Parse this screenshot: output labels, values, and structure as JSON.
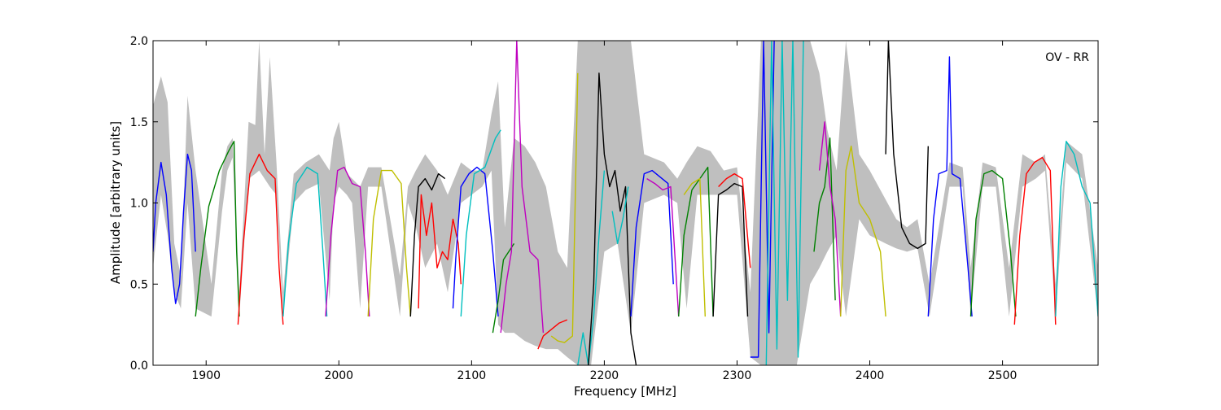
{
  "chart_data": {
    "type": "line",
    "annotation": "OV - RR",
    "xlabel": "Frequency [MHz]",
    "ylabel": "Amplitude [arbitrary units]",
    "xlim": [
      1860,
      2572
    ],
    "ylim": [
      0.0,
      2.0
    ],
    "x_ticks": [
      1900,
      2000,
      2100,
      2200,
      2300,
      2400,
      2500
    ],
    "y_ticks": [
      0.0,
      0.5,
      1.0,
      1.5,
      2.0
    ],
    "x_tick_labels": [
      "1900",
      "2000",
      "2100",
      "2200",
      "2300",
      "2400",
      "2500"
    ],
    "y_tick_labels": [
      "0.0",
      "0.5",
      "1.0",
      "1.5",
      "2.0"
    ],
    "grid": false,
    "legend": "none",
    "background_envelope": {
      "color": "#bfbfbf",
      "x": [
        1860,
        1866,
        1871,
        1876,
        1881,
        1886,
        1892,
        1904,
        1912,
        1916,
        1920,
        1925,
        1932,
        1937,
        1940,
        1944,
        1948,
        1953,
        1958,
        1966,
        1975,
        1985,
        1993,
        1996,
        2000,
        2006,
        2010,
        2016,
        2022,
        2032,
        2046,
        2052,
        2058,
        2065,
        2074,
        2082,
        2092,
        2100,
        2108,
        2115,
        2120,
        2125,
        2132,
        2140,
        2148,
        2156,
        2165,
        2172,
        2180,
        2190,
        2200,
        2210,
        2220,
        2230,
        2245,
        2255,
        2262,
        2270,
        2280,
        2290,
        2300,
        2310,
        2318,
        2330,
        2345,
        2355,
        2362,
        2368,
        2375,
        2382,
        2392,
        2400,
        2412,
        2420,
        2428,
        2436,
        2445,
        2460,
        2470,
        2476,
        2485,
        2495,
        2505,
        2515,
        2525,
        2532,
        2540,
        2548,
        2560,
        2572
      ],
      "upper": [
        1.6,
        1.78,
        1.62,
        0.75,
        0.55,
        1.66,
        1.2,
        0.5,
        1.2,
        1.35,
        1.4,
        0.45,
        1.5,
        1.48,
        2.0,
        1.3,
        1.9,
        1.25,
        0.45,
        1.18,
        1.25,
        1.3,
        1.2,
        1.4,
        1.5,
        1.18,
        1.15,
        1.1,
        1.22,
        1.22,
        0.55,
        1.1,
        1.2,
        1.3,
        1.2,
        1.05,
        1.25,
        1.2,
        1.2,
        1.55,
        1.75,
        0.85,
        1.4,
        1.35,
        1.25,
        1.1,
        0.7,
        0.6,
        2.0,
        2.0,
        2.0,
        2.0,
        2.0,
        1.3,
        1.25,
        1.15,
        1.25,
        1.35,
        1.32,
        1.2,
        1.22,
        0.45,
        2.0,
        2.0,
        2.0,
        2.0,
        1.8,
        1.45,
        1.2,
        2.0,
        1.3,
        1.2,
        1.02,
        0.9,
        0.85,
        0.9,
        0.5,
        1.25,
        1.22,
        0.6,
        1.25,
        1.22,
        0.6,
        1.3,
        1.25,
        1.3,
        0.5,
        1.38,
        1.3,
        0.6
      ],
      "lower": [
        0.6,
        1.05,
        0.8,
        0.45,
        0.35,
        1.0,
        0.35,
        0.3,
        0.95,
        1.2,
        1.28,
        0.3,
        1.15,
        1.18,
        1.2,
        1.15,
        1.1,
        1.05,
        0.3,
        1.0,
        1.08,
        1.12,
        0.4,
        1.0,
        1.1,
        1.05,
        1.0,
        0.35,
        1.1,
        1.1,
        0.3,
        1.0,
        0.85,
        0.6,
        0.75,
        0.45,
        1.0,
        1.05,
        1.1,
        1.2,
        0.25,
        0.2,
        0.2,
        0.15,
        0.12,
        0.1,
        0.1,
        0.05,
        0.0,
        0.0,
        0.7,
        0.75,
        0.2,
        1.0,
        1.05,
        1.0,
        0.35,
        1.05,
        1.05,
        1.05,
        1.05,
        0.05,
        0.0,
        0.0,
        0.0,
        0.5,
        0.6,
        0.7,
        0.8,
        0.3,
        0.9,
        0.8,
        0.75,
        0.72,
        0.7,
        0.72,
        0.3,
        1.1,
        1.1,
        0.3,
        1.1,
        1.1,
        0.3,
        1.1,
        1.15,
        1.2,
        0.3,
        1.25,
        1.15,
        0.3
      ]
    },
    "series": [
      {
        "color": "#0000ff",
        "x": [
          1860,
          1862,
          1866,
          1870,
          1874,
          1877,
          1880,
          1883,
          1886,
          1889,
          1892
        ],
        "y": [
          0.7,
          1.0,
          1.25,
          1.05,
          0.6,
          0.38,
          0.5,
          0.95,
          1.3,
          1.2,
          0.7
        ]
      },
      {
        "color": "#008000",
        "x": [
          1892,
          1896,
          1902,
          1910,
          1917,
          1921,
          1923,
          1925
        ],
        "y": [
          0.3,
          0.6,
          0.98,
          1.2,
          1.32,
          1.38,
          0.7,
          0.3
        ]
      },
      {
        "color": "#ff0000",
        "x": [
          1924,
          1928,
          1933,
          1940,
          1946,
          1952,
          1955,
          1958
        ],
        "y": [
          0.25,
          0.75,
          1.18,
          1.3,
          1.2,
          1.15,
          0.6,
          0.25
        ]
      },
      {
        "color": "#00bfbf",
        "x": [
          1958,
          1962,
          1968,
          1976,
          1984,
          1988,
          1991
        ],
        "y": [
          0.3,
          0.75,
          1.12,
          1.22,
          1.18,
          0.7,
          0.3
        ]
      },
      {
        "color": "#bf00bf",
        "x": [
          1990,
          1994,
          1999,
          2004,
          2010,
          2016,
          2020,
          2023
        ],
        "y": [
          0.3,
          0.8,
          1.2,
          1.22,
          1.12,
          1.1,
          0.7,
          0.3
        ]
      },
      {
        "color": "#bfbf00",
        "x": [
          2022,
          2026,
          2032,
          2040,
          2047,
          2051,
          2054
        ],
        "y": [
          0.3,
          0.9,
          1.2,
          1.2,
          1.12,
          0.6,
          0.3
        ]
      },
      {
        "color": "#000000",
        "x": [
          2054,
          2057,
          2060,
          2065,
          2070,
          2075,
          2080
        ],
        "y": [
          0.3,
          0.8,
          1.1,
          1.15,
          1.08,
          1.18,
          1.15
        ]
      },
      {
        "color": "#ff0000",
        "x": [
          2060,
          2062,
          2066,
          2070,
          2074,
          2078,
          2082,
          2086,
          2090,
          2092
        ],
        "y": [
          0.35,
          1.05,
          0.8,
          1.0,
          0.6,
          0.7,
          0.65,
          0.9,
          0.75,
          0.5
        ]
      },
      {
        "color": "#0000ff",
        "x": [
          2086,
          2088,
          2092,
          2098,
          2104,
          2110,
          2116,
          2120
        ],
        "y": [
          0.35,
          0.65,
          1.1,
          1.18,
          1.22,
          1.18,
          0.7,
          0.3
        ]
      },
      {
        "color": "#00bfbf",
        "x": [
          2092,
          2096,
          2102,
          2110,
          2118,
          2122
        ],
        "y": [
          0.3,
          0.8,
          1.18,
          1.22,
          1.4,
          1.45
        ]
      },
      {
        "color": "#008000",
        "x": [
          2116,
          2120,
          2124,
          2128,
          2132
        ],
        "y": [
          0.2,
          0.4,
          0.65,
          0.7,
          0.75
        ]
      },
      {
        "color": "#bf00bf",
        "x": [
          2122,
          2126,
          2130,
          2134,
          2138,
          2144,
          2150,
          2154
        ],
        "y": [
          0.2,
          0.5,
          0.7,
          2.0,
          1.1,
          0.7,
          0.65,
          0.2
        ]
      },
      {
        "color": "#ff0000",
        "x": [
          2150,
          2154,
          2160,
          2166,
          2172
        ],
        "y": [
          0.1,
          0.18,
          0.22,
          0.26,
          0.28
        ]
      },
      {
        "color": "#bfbf00",
        "x": [
          2160,
          2165,
          2170,
          2176,
          2180
        ],
        "y": [
          0.18,
          0.15,
          0.14,
          0.18,
          1.8
        ]
      },
      {
        "color": "#00bfbf",
        "x": [
          2180,
          2184,
          2188,
          2192,
          2196,
          2200
        ],
        "y": [
          0.0,
          0.2,
          0.0,
          0.3,
          0.8,
          1.2
        ]
      },
      {
        "color": "#000000",
        "x": [
          2188,
          2192,
          2196,
          2200,
          2204,
          2208,
          2212,
          2216,
          2220,
          2224
        ],
        "y": [
          0.0,
          0.5,
          1.8,
          1.3,
          1.1,
          1.2,
          0.95,
          1.1,
          0.2,
          0.0
        ]
      },
      {
        "color": "#00bfbf",
        "x": [
          2206,
          2210,
          2214,
          2218
        ],
        "y": [
          0.95,
          0.75,
          0.9,
          1.1
        ]
      },
      {
        "color": "#0000ff",
        "x": [
          2220,
          2224,
          2230,
          2236,
          2242,
          2248,
          2252
        ],
        "y": [
          0.3,
          0.85,
          1.18,
          1.2,
          1.16,
          1.12,
          0.5
        ]
      },
      {
        "color": "#bf00bf",
        "x": [
          2232,
          2238,
          2244,
          2250,
          2256
        ],
        "y": [
          1.15,
          1.12,
          1.08,
          1.1,
          0.3
        ]
      },
      {
        "color": "#008000",
        "x": [
          2256,
          2260,
          2266,
          2272,
          2278,
          2282
        ],
        "y": [
          0.3,
          0.8,
          1.08,
          1.15,
          1.22,
          0.3
        ]
      },
      {
        "color": "#bfbf00",
        "x": [
          2260,
          2266,
          2272,
          2276
        ],
        "y": [
          1.05,
          1.12,
          1.15,
          0.3
        ]
      },
      {
        "color": "#000000",
        "x": [
          2282,
          2286,
          2292,
          2298,
          2304,
          2308
        ],
        "y": [
          0.3,
          1.05,
          1.08,
          1.12,
          1.1,
          0.3
        ]
      },
      {
        "color": "#ff0000",
        "x": [
          2286,
          2292,
          2298,
          2304,
          2310
        ],
        "y": [
          1.1,
          1.15,
          1.18,
          1.15,
          0.6
        ]
      },
      {
        "color": "#0000ff",
        "x": [
          2310,
          2316,
          2320,
          2324,
          2328
        ],
        "y": [
          0.05,
          0.05,
          2.0,
          0.2,
          2.0
        ]
      },
      {
        "color": "#00bfbf",
        "x": [
          2322,
          2326,
          2330,
          2334,
          2338,
          2342,
          2346,
          2350
        ],
        "y": [
          0.0,
          2.0,
          0.1,
          2.0,
          0.4,
          2.0,
          0.05,
          2.0
        ]
      },
      {
        "color": "#008000",
        "x": [
          2358,
          2362,
          2366,
          2370,
          2374
        ],
        "y": [
          0.7,
          1.0,
          1.1,
          1.4,
          0.4
        ]
      },
      {
        "color": "#bf00bf",
        "x": [
          2362,
          2366,
          2370,
          2374,
          2378
        ],
        "y": [
          1.2,
          1.5,
          1.1,
          0.9,
          0.3
        ]
      },
      {
        "color": "#bfbf00",
        "x": [
          2378,
          2382,
          2386,
          2392,
          2400,
          2408,
          2412
        ],
        "y": [
          0.3,
          1.2,
          1.35,
          1.0,
          0.9,
          0.7,
          0.3
        ]
      },
      {
        "color": "#000000",
        "x": [
          2412,
          2414,
          2418,
          2424,
          2430,
          2436,
          2442,
          2444
        ],
        "y": [
          1.3,
          2.0,
          1.3,
          0.85,
          0.75,
          0.72,
          0.75,
          1.35
        ]
      },
      {
        "color": "#0000ff",
        "x": [
          2444,
          2448,
          2452,
          2458,
          2460,
          2462,
          2468,
          2474,
          2477
        ],
        "y": [
          0.3,
          0.9,
          1.18,
          1.2,
          1.9,
          1.18,
          1.15,
          0.6,
          0.3
        ]
      },
      {
        "color": "#008000",
        "x": [
          2476,
          2480,
          2486,
          2492,
          2500,
          2506,
          2510
        ],
        "y": [
          0.3,
          0.9,
          1.18,
          1.2,
          1.15,
          0.7,
          0.3
        ]
      },
      {
        "color": "#ff0000",
        "x": [
          2509,
          2513,
          2518,
          2524,
          2530,
          2536,
          2540
        ],
        "y": [
          0.25,
          0.8,
          1.18,
          1.25,
          1.28,
          1.2,
          0.25
        ]
      },
      {
        "color": "#00bfbf",
        "x": [
          2540,
          2544,
          2548,
          2554,
          2560,
          2566,
          2572
        ],
        "y": [
          0.3,
          1.1,
          1.38,
          1.3,
          1.1,
          1.0,
          0.3
        ]
      }
    ]
  }
}
